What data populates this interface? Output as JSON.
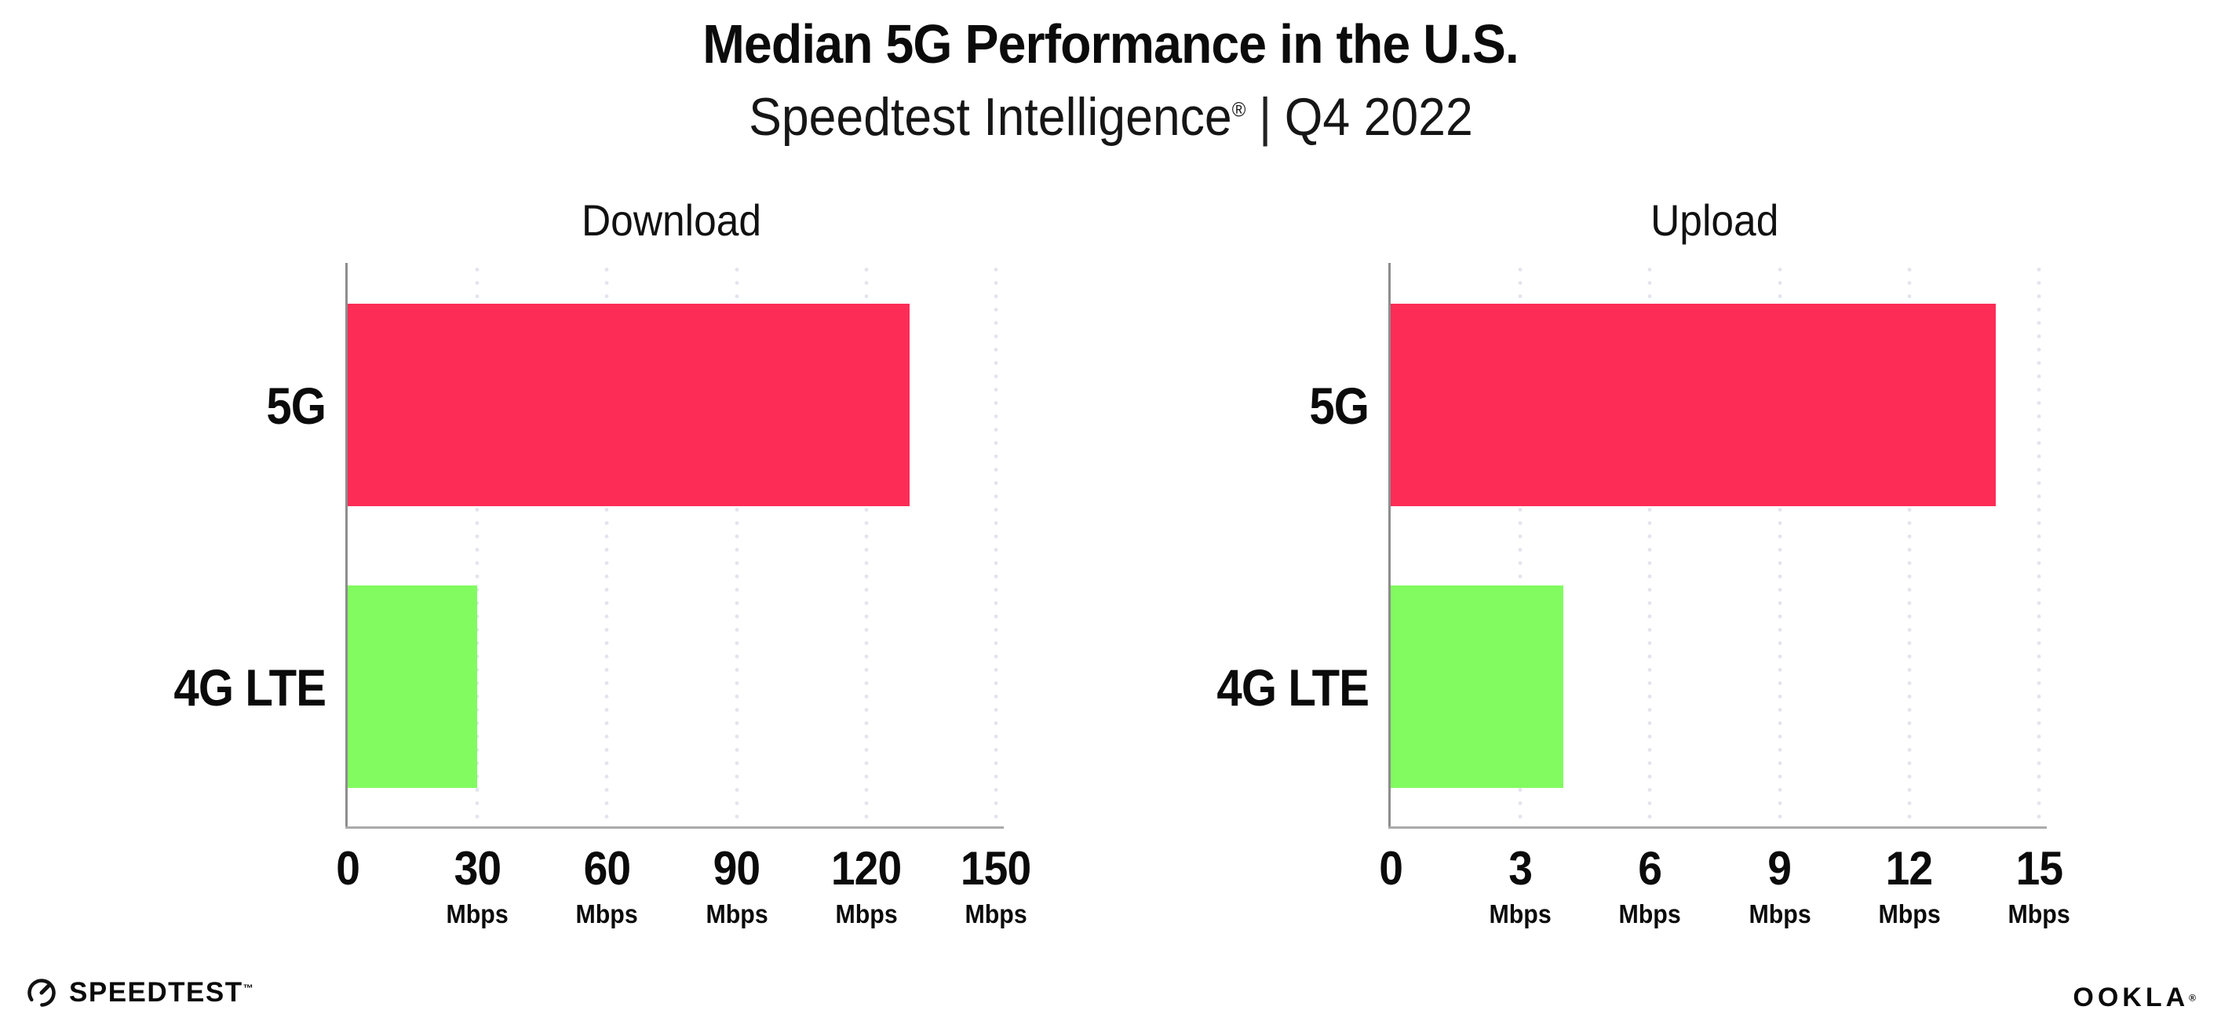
{
  "header": {
    "title": "Median 5G Performance in the U.S.",
    "subtitle_brand": "Speedtest Intelligence",
    "subtitle_reg": "®",
    "subtitle_sep": "|",
    "subtitle_period": "Q4 2022"
  },
  "chart_data": [
    {
      "type": "bar",
      "orientation": "horizontal",
      "title": "Download",
      "categories": [
        "5G",
        "4G LTE"
      ],
      "values": [
        130,
        30
      ],
      "unit": "Mbps",
      "xlim": [
        0,
        150
      ],
      "xticks": [
        0,
        30,
        60,
        90,
        120,
        150
      ],
      "bar_colors": [
        "#FD2C56",
        "#82FB60"
      ],
      "grid": "dotted-vertical",
      "legend": "none"
    },
    {
      "type": "bar",
      "orientation": "horizontal",
      "title": "Upload",
      "categories": [
        "5G",
        "4G LTE"
      ],
      "values": [
        14,
        4
      ],
      "unit": "Mbps",
      "xlim": [
        0,
        15
      ],
      "xticks": [
        0,
        3,
        6,
        9,
        12,
        15
      ],
      "bar_colors": [
        "#FD2C56",
        "#82FB60"
      ],
      "grid": "dotted-vertical",
      "legend": "none"
    }
  ],
  "footer": {
    "speedtest_label": "SPEEDTEST",
    "speedtest_tm": "™",
    "ookla_label": "OOKLA",
    "ookla_reg": "®"
  },
  "colors": {
    "bar_5g": "#FD2C56",
    "bar_4g_lte": "#82FB60",
    "axis": "#8d8d8d",
    "grid_dots": "#e4e4ee",
    "text": "#0b0b0b",
    "background": "#ffffff"
  }
}
